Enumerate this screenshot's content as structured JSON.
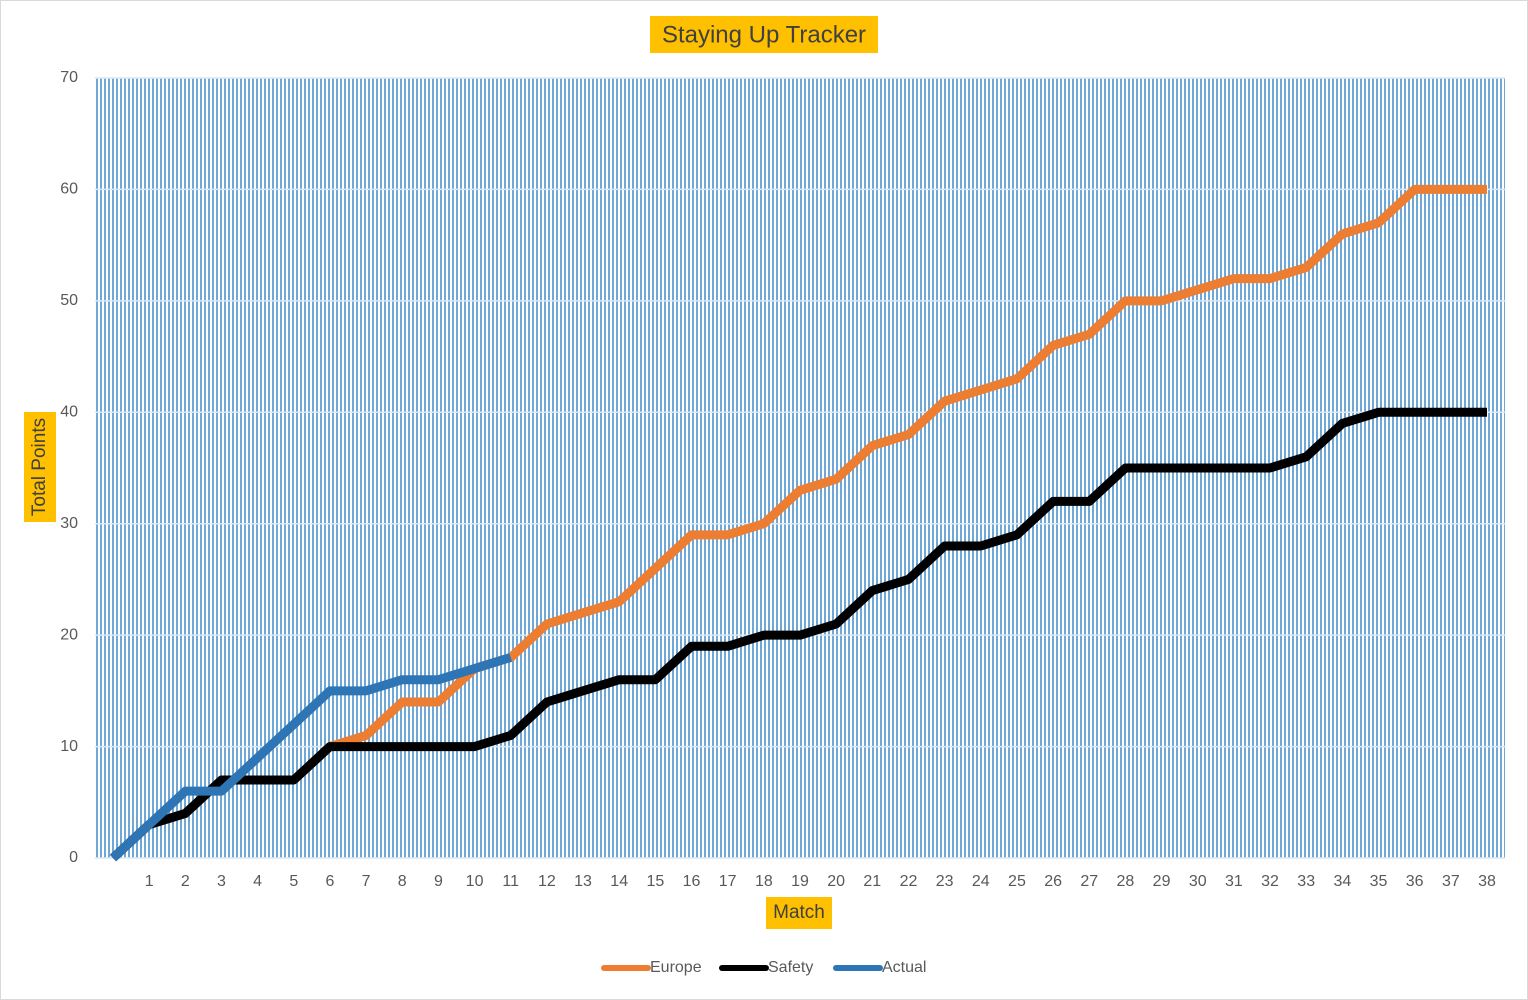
{
  "chart_data": {
    "type": "line",
    "title": "Staying Up Tracker",
    "x_label": "Match",
    "y_label": "Total Points",
    "categories": [
      null,
      "1",
      "2",
      "3",
      "4",
      "5",
      "6",
      "7",
      "8",
      "9",
      "10",
      "11",
      "12",
      "13",
      "14",
      "15",
      "16",
      "17",
      "18",
      "19",
      "20",
      "21",
      "22",
      "23",
      "24",
      "25",
      "26",
      "27",
      "28",
      "29",
      "30",
      "31",
      "32",
      "33",
      "34",
      "35",
      "36",
      "37",
      "38"
    ],
    "series": [
      {
        "name": "Europe",
        "color": "#ed7d31",
        "values": [
          0,
          3,
          4,
          7,
          7,
          7,
          10,
          11,
          14,
          14,
          17,
          18,
          21,
          22,
          23,
          26,
          29,
          29,
          30,
          33,
          34,
          37,
          38,
          41,
          42,
          43,
          46,
          47,
          50,
          50,
          51,
          52,
          52,
          53,
          56,
          57,
          60,
          60,
          60
        ]
      },
      {
        "name": "Safety",
        "color": "#000000",
        "values": [
          0,
          3,
          4,
          7,
          7,
          7,
          10,
          10,
          10,
          10,
          10,
          11,
          14,
          15,
          16,
          16,
          19,
          19,
          20,
          20,
          21,
          24,
          25,
          28,
          28,
          29,
          32,
          32,
          35,
          35,
          35,
          35,
          35,
          36,
          39,
          40,
          40,
          40,
          40
        ]
      },
      {
        "name": "Actual",
        "color": "#2e75b6",
        "values": [
          0,
          3,
          6,
          6,
          9,
          12,
          15,
          15,
          16,
          16,
          17,
          18,
          null,
          null,
          null,
          null,
          null,
          null,
          null,
          null,
          null,
          null,
          null,
          null,
          null,
          null,
          null,
          null,
          null,
          null,
          null,
          null,
          null,
          null,
          null,
          null,
          null,
          null,
          null
        ]
      }
    ],
    "ylim": [
      0,
      70
    ],
    "yticks": [
      0,
      10,
      20,
      30,
      40,
      50,
      60,
      70
    ],
    "grid": true,
    "legend": "bottom"
  }
}
